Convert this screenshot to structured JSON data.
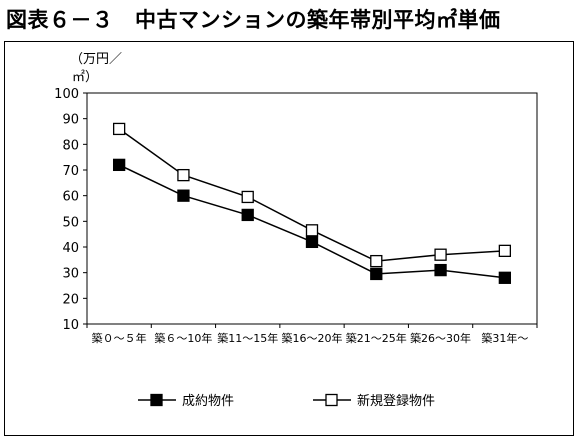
{
  "title": "図表６－３　中古マンションの築年帯別平均㎡単価",
  "chart_data": {
    "type": "line",
    "title": "図表６－３　中古マンションの築年帯別平均㎡単価",
    "ylabel_line1": "（万円／",
    "ylabel_line2": "㎡）",
    "xlabel": "",
    "ylim": [
      10,
      100
    ],
    "yticks": [
      10,
      20,
      30,
      40,
      50,
      60,
      70,
      80,
      90,
      100
    ],
    "grid": false,
    "legend_position": "bottom",
    "categories": [
      "築０～５年",
      "築６～10年",
      "築11～15年",
      "築16～20年",
      "築21～25年",
      "築26～30年",
      "築31年～"
    ],
    "series": [
      {
        "name": "成約物件",
        "marker": "filled-square",
        "values": [
          72,
          60,
          52.5,
          42,
          29.5,
          31,
          28
        ]
      },
      {
        "name": "新規登録物件",
        "marker": "open-square",
        "values": [
          86,
          68,
          59.5,
          46.5,
          34.5,
          37,
          38.5
        ]
      }
    ],
    "colors": {
      "line": "#000000",
      "filled_marker": "#000000",
      "open_marker_fill": "#ffffff"
    }
  }
}
